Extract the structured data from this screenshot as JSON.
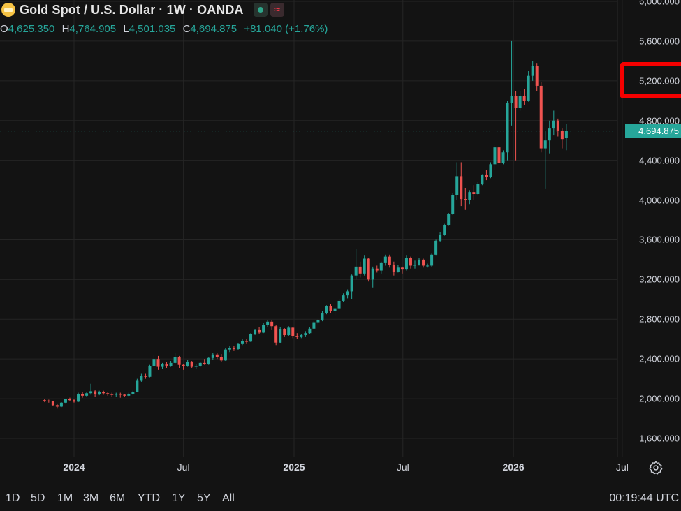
{
  "header": {
    "title": "Gold Spot / U.S. Dollar · 1W · OANDA",
    "icon": "gold-bar-icon",
    "status_icon": "market-open-dot-icon",
    "wave_icon": "≈",
    "ohlc": {
      "o_label": "O",
      "o_value": "4,625.350",
      "h_label": "H",
      "h_value": "4,764.905",
      "l_label": "L",
      "l_value": "4,501.035",
      "c_label": "C",
      "c_value": "4,694.875",
      "change": "+81.040 (+1.76%)"
    }
  },
  "time_axis": {
    "labels": [
      {
        "text": "2024",
        "bold": true,
        "date": "2024-01-01"
      },
      {
        "text": "Jul",
        "bold": false,
        "date": "2024-07-01"
      },
      {
        "text": "2025",
        "bold": true,
        "date": "2025-01-01"
      },
      {
        "text": "Jul",
        "bold": false,
        "date": "2025-07-01"
      },
      {
        "text": "2026",
        "bold": true,
        "date": "2026-01-01"
      },
      {
        "text": "Jul",
        "bold": false,
        "date": "2026-07-01"
      }
    ]
  },
  "price_axis": {
    "labels": [
      "6,000.000",
      "5,600.000",
      "5,200.000",
      "4,800.000",
      "4,400.000",
      "4,000.000",
      "3,600.000",
      "3,200.000",
      "2,800.000",
      "2,400.000",
      "2,000.000",
      "1,600.000"
    ],
    "values": [
      6000,
      5600,
      5200,
      4800,
      4400,
      4000,
      3600,
      3200,
      2800,
      2400,
      2000,
      1600
    ],
    "last_price_label": "4,694.875",
    "last_price": 4694.875
  },
  "annotation": {
    "highlight_label": "5,200.000",
    "color": "#f50000"
  },
  "range_buttons": [
    "1D",
    "5D",
    "1M",
    "3M",
    "6M",
    "YTD",
    "1Y",
    "5Y",
    "All"
  ],
  "clock": "00:19:44 UTC",
  "colors": {
    "up": "#26a69a",
    "down": "#ef5350",
    "background": "#131313",
    "grid": "#252525"
  },
  "chart_data": {
    "type": "candlestick",
    "symbol": "Gold Spot / U.S. Dollar",
    "interval": "1W",
    "x_range": [
      "2023-11-13",
      "2026-07-13"
    ],
    "y_range": [
      1500,
      6000
    ],
    "note_ohlc_order": "[open, high, low, close]",
    "start_date": "2023-11-13",
    "series": [
      [
        1985,
        1995,
        1965,
        1980
      ],
      [
        1980,
        1990,
        1960,
        1975
      ],
      [
        1975,
        1980,
        1925,
        1935
      ],
      [
        1935,
        1945,
        1900,
        1920
      ],
      [
        1920,
        1965,
        1915,
        1960
      ],
      [
        1960,
        2000,
        1950,
        1995
      ],
      [
        1995,
        2010,
        1975,
        1985
      ],
      [
        1985,
        2000,
        1960,
        1970
      ],
      [
        1970,
        2060,
        1965,
        2050
      ],
      [
        2050,
        2070,
        2010,
        2030
      ],
      [
        2030,
        2065,
        2020,
        2055
      ],
      [
        2055,
        2150,
        2040,
        2075
      ],
      [
        2075,
        2090,
        2020,
        2045
      ],
      [
        2045,
        2080,
        2035,
        2070
      ],
      [
        2070,
        2080,
        2040,
        2055
      ],
      [
        2055,
        2070,
        2030,
        2045
      ],
      [
        2045,
        2060,
        2020,
        2040
      ],
      [
        2040,
        2060,
        2020,
        2050
      ],
      [
        2050,
        2060,
        2010,
        2040
      ],
      [
        2040,
        2050,
        2020,
        2030
      ],
      [
        2030,
        2060,
        2025,
        2050
      ],
      [
        2050,
        2080,
        2040,
        2070
      ],
      [
        2070,
        2200,
        2065,
        2180
      ],
      [
        2180,
        2250,
        2170,
        2230
      ],
      [
        2230,
        2250,
        2200,
        2220
      ],
      [
        2220,
        2340,
        2215,
        2330
      ],
      [
        2330,
        2440,
        2320,
        2400
      ],
      [
        2400,
        2430,
        2290,
        2320
      ],
      [
        2320,
        2360,
        2300,
        2345
      ],
      [
        2345,
        2370,
        2310,
        2330
      ],
      [
        2330,
        2380,
        2320,
        2360
      ],
      [
        2360,
        2460,
        2350,
        2420
      ],
      [
        2420,
        2430,
        2310,
        2340
      ],
      [
        2340,
        2350,
        2290,
        2330
      ],
      [
        2330,
        2390,
        2320,
        2370
      ],
      [
        2370,
        2380,
        2310,
        2320
      ],
      [
        2320,
        2350,
        2300,
        2330
      ],
      [
        2330,
        2370,
        2320,
        2360
      ],
      [
        2360,
        2400,
        2340,
        2350
      ],
      [
        2350,
        2420,
        2340,
        2410
      ],
      [
        2410,
        2460,
        2390,
        2445
      ],
      [
        2445,
        2460,
        2400,
        2420
      ],
      [
        2420,
        2450,
        2370,
        2385
      ],
      [
        2385,
        2510,
        2380,
        2495
      ],
      [
        2495,
        2530,
        2470,
        2510
      ],
      [
        2510,
        2530,
        2480,
        2500
      ],
      [
        2500,
        2560,
        2490,
        2550
      ],
      [
        2550,
        2600,
        2540,
        2580
      ],
      [
        2580,
        2600,
        2550,
        2575
      ],
      [
        2575,
        2660,
        2570,
        2650
      ],
      [
        2650,
        2700,
        2640,
        2690
      ],
      [
        2690,
        2720,
        2650,
        2665
      ],
      [
        2665,
        2760,
        2660,
        2745
      ],
      [
        2745,
        2790,
        2720,
        2775
      ],
      [
        2775,
        2790,
        2690,
        2730
      ],
      [
        2730,
        2740,
        2540,
        2565
      ],
      [
        2565,
        2720,
        2560,
        2700
      ],
      [
        2700,
        2710,
        2620,
        2640
      ],
      [
        2640,
        2730,
        2630,
        2715
      ],
      [
        2715,
        2720,
        2610,
        2630
      ],
      [
        2630,
        2660,
        2600,
        2620
      ],
      [
        2620,
        2650,
        2610,
        2640
      ],
      [
        2640,
        2680,
        2620,
        2660
      ],
      [
        2660,
        2720,
        2650,
        2705
      ],
      [
        2705,
        2780,
        2700,
        2770
      ],
      [
        2770,
        2800,
        2750,
        2790
      ],
      [
        2790,
        2880,
        2780,
        2860
      ],
      [
        2860,
        2940,
        2850,
        2930
      ],
      [
        2930,
        2950,
        2860,
        2880
      ],
      [
        2880,
        2920,
        2840,
        2910
      ],
      [
        2910,
        3000,
        2900,
        2985
      ],
      [
        2985,
        3060,
        2975,
        3040
      ],
      [
        3040,
        3100,
        3010,
        3080
      ],
      [
        3080,
        3250,
        3000,
        3240
      ],
      [
        3240,
        3510,
        3200,
        3330
      ],
      [
        3330,
        3380,
        3220,
        3260
      ],
      [
        3260,
        3440,
        3240,
        3410
      ],
      [
        3410,
        3420,
        3180,
        3200
      ],
      [
        3200,
        3330,
        3120,
        3310
      ],
      [
        3310,
        3340,
        3270,
        3290
      ],
      [
        3290,
        3380,
        3260,
        3365
      ],
      [
        3365,
        3450,
        3340,
        3430
      ],
      [
        3430,
        3450,
        3320,
        3350
      ],
      [
        3350,
        3380,
        3240,
        3280
      ],
      [
        3280,
        3350,
        3270,
        3320
      ],
      [
        3320,
        3330,
        3260,
        3300
      ],
      [
        3300,
        3440,
        3290,
        3420
      ],
      [
        3420,
        3430,
        3310,
        3340
      ],
      [
        3340,
        3390,
        3310,
        3350
      ],
      [
        3350,
        3420,
        3340,
        3400
      ],
      [
        3400,
        3410,
        3320,
        3340
      ],
      [
        3340,
        3360,
        3320,
        3340
      ],
      [
        3340,
        3460,
        3330,
        3450
      ],
      [
        3450,
        3600,
        3440,
        3590
      ],
      [
        3590,
        3680,
        3580,
        3650
      ],
      [
        3650,
        3760,
        3640,
        3750
      ],
      [
        3750,
        3870,
        3740,
        3860
      ],
      [
        3860,
        4070,
        3850,
        4050
      ],
      [
        4050,
        4380,
        4000,
        4240
      ],
      [
        4240,
        4380,
        3940,
        4010
      ],
      [
        4010,
        4120,
        3900,
        4000
      ],
      [
        4000,
        4100,
        3960,
        4080
      ],
      [
        4080,
        4150,
        4000,
        4060
      ],
      [
        4060,
        4180,
        4050,
        4160
      ],
      [
        4160,
        4260,
        4150,
        4250
      ],
      [
        4250,
        4300,
        4200,
        4230
      ],
      [
        4230,
        4380,
        4220,
        4360
      ],
      [
        4360,
        4560,
        4300,
        4530
      ],
      [
        4530,
        4560,
        4330,
        4370
      ],
      [
        4370,
        4500,
        4360,
        4480
      ],
      [
        4480,
        5000,
        4400,
        4980
      ],
      [
        4980,
        5600,
        4750,
        5050
      ],
      [
        5050,
        5100,
        4400,
        4930
      ],
      [
        4930,
        5100,
        4900,
        5050
      ],
      [
        5050,
        5120,
        4960,
        5000
      ],
      [
        5000,
        5300,
        4990,
        5250
      ],
      [
        5250,
        5400,
        5200,
        5350
      ],
      [
        5350,
        5380,
        5100,
        5150
      ],
      [
        5150,
        5190,
        4480,
        4520
      ],
      [
        4520,
        4700,
        4110,
        4600
      ],
      [
        4600,
        4800,
        4470,
        4720
      ],
      [
        4720,
        4900,
        4650,
        4800
      ],
      [
        4800,
        4820,
        4640,
        4700
      ],
      [
        4700,
        4720,
        4520,
        4614
      ],
      [
        4625.35,
        4764.905,
        4501.035,
        4694.875
      ]
    ]
  }
}
